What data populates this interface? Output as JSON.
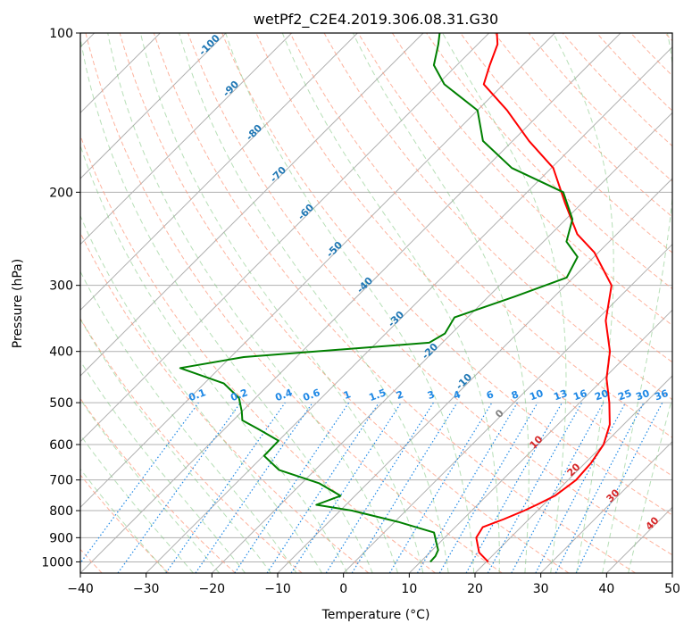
{
  "chart_data": {
    "type": "line",
    "subtype": "skew-T log-P diagram",
    "title": "wetPf2_C2E4.2019.306.08.31.G30",
    "xlabel": "Temperature (°C)",
    "ylabel": "Pressure (hPa)",
    "xlim": [
      -40,
      50
    ],
    "ylim": [
      1050,
      100
    ],
    "y_scale": "log",
    "x_ticks": [
      "−40",
      "−30",
      "−20",
      "−10",
      "0",
      "10",
      "20",
      "30",
      "40",
      "50"
    ],
    "x_tick_values": [
      -40,
      -30,
      -20,
      -10,
      0,
      10,
      20,
      30,
      40,
      50
    ],
    "y_ticks": [
      "100",
      "200",
      "300",
      "400",
      "500",
      "600",
      "700",
      "800",
      "900",
      "1000"
    ],
    "y_tick_values": [
      100,
      200,
      300,
      400,
      500,
      600,
      700,
      800,
      900,
      1000
    ],
    "grid": true,
    "series": [
      {
        "color": "#ff0000",
        "points": [
          [
            20.3,
            1000
          ],
          [
            17.5,
            960
          ],
          [
            14.8,
            900
          ],
          [
            14.2,
            860
          ],
          [
            16.2,
            830
          ],
          [
            18.0,
            800
          ],
          [
            19.0,
            780
          ],
          [
            20.4,
            750
          ],
          [
            21.2,
            700
          ],
          [
            20.9,
            650
          ],
          [
            20.0,
            600
          ],
          [
            17.9,
            550
          ],
          [
            14.5,
            500
          ],
          [
            10.4,
            450
          ],
          [
            6.8,
            400
          ],
          [
            1.5,
            350
          ],
          [
            -3.0,
            300
          ],
          [
            -10.6,
            260
          ],
          [
            -16.0,
            240
          ],
          [
            -22.5,
            210
          ],
          [
            -29.7,
            180
          ],
          [
            -37.5,
            160
          ],
          [
            -45.5,
            140
          ],
          [
            -53.0,
            125
          ],
          [
            -55.0,
            115
          ],
          [
            -57.0,
            105
          ],
          [
            -58.8,
            100
          ]
        ]
      },
      {
        "color": "#008000",
        "points": [
          [
            11.5,
            1000
          ],
          [
            11.4,
            975
          ],
          [
            10.9,
            950
          ],
          [
            9.5,
            920
          ],
          [
            7.6,
            880
          ],
          [
            0.5,
            840
          ],
          [
            -8.2,
            800
          ],
          [
            -14.5,
            780
          ],
          [
            -12.2,
            750
          ],
          [
            -17.4,
            710
          ],
          [
            -25.5,
            670
          ],
          [
            -29.9,
            630
          ],
          [
            -30.0,
            590
          ],
          [
            -35.0,
            560
          ],
          [
            -38.6,
            540
          ],
          [
            -40.0,
            520
          ],
          [
            -42.5,
            490
          ],
          [
            -47.0,
            460
          ],
          [
            -56.0,
            430
          ],
          [
            -48.0,
            410
          ],
          [
            -22.0,
            385
          ],
          [
            -21.0,
            370
          ],
          [
            -22.0,
            345
          ],
          [
            -16.0,
            315
          ],
          [
            -11.0,
            290
          ],
          [
            -12.5,
            265
          ],
          [
            -16.5,
            248
          ],
          [
            -19.0,
            225
          ],
          [
            -24.5,
            200
          ],
          [
            -36.0,
            180
          ],
          [
            -44.5,
            160
          ],
          [
            -50.0,
            140
          ],
          [
            -59.0,
            125
          ],
          [
            -63.5,
            115
          ],
          [
            -66.0,
            105
          ],
          [
            -67.5,
            100
          ]
        ]
      }
    ],
    "reference_lines": {
      "dry_adiabats_theta_C": [
        -100,
        -90,
        -80,
        -70,
        -60,
        -50,
        -40,
        -30,
        -20,
        -10,
        0,
        10,
        20,
        30,
        40,
        50,
        60,
        70,
        80,
        90,
        100,
        110,
        120,
        130,
        140,
        150,
        160,
        170,
        180,
        190,
        200
      ],
      "mixing_ratio_g_per_kg": [
        0.1,
        0.2,
        0.4,
        0.6,
        1,
        1.5,
        2,
        3,
        4,
        6,
        8,
        10,
        13,
        16,
        20,
        25,
        30,
        36
      ],
      "dry_adiabat_label_color": "#1f77b4",
      "moist_adiabat_label_color": "#d62728",
      "mixing_ratio_label_color": "#1e88e5",
      "zero_label_color": "#808080"
    },
    "dry_adiabat_labels": [
      "-100",
      "-90",
      "-80",
      "-70",
      "-60",
      "-50",
      "-40",
      "-30",
      "-20",
      "-10"
    ],
    "moist_labels": [
      "0",
      "10",
      "20",
      "30",
      "40"
    ],
    "mixing_ratio_labels": [
      "0.1",
      "0.2",
      "0.4",
      "0.6",
      "1",
      "1.5",
      "2",
      "3",
      "4",
      "6",
      "8",
      "10",
      "13",
      "16",
      "20",
      "25",
      "30",
      "36"
    ]
  }
}
